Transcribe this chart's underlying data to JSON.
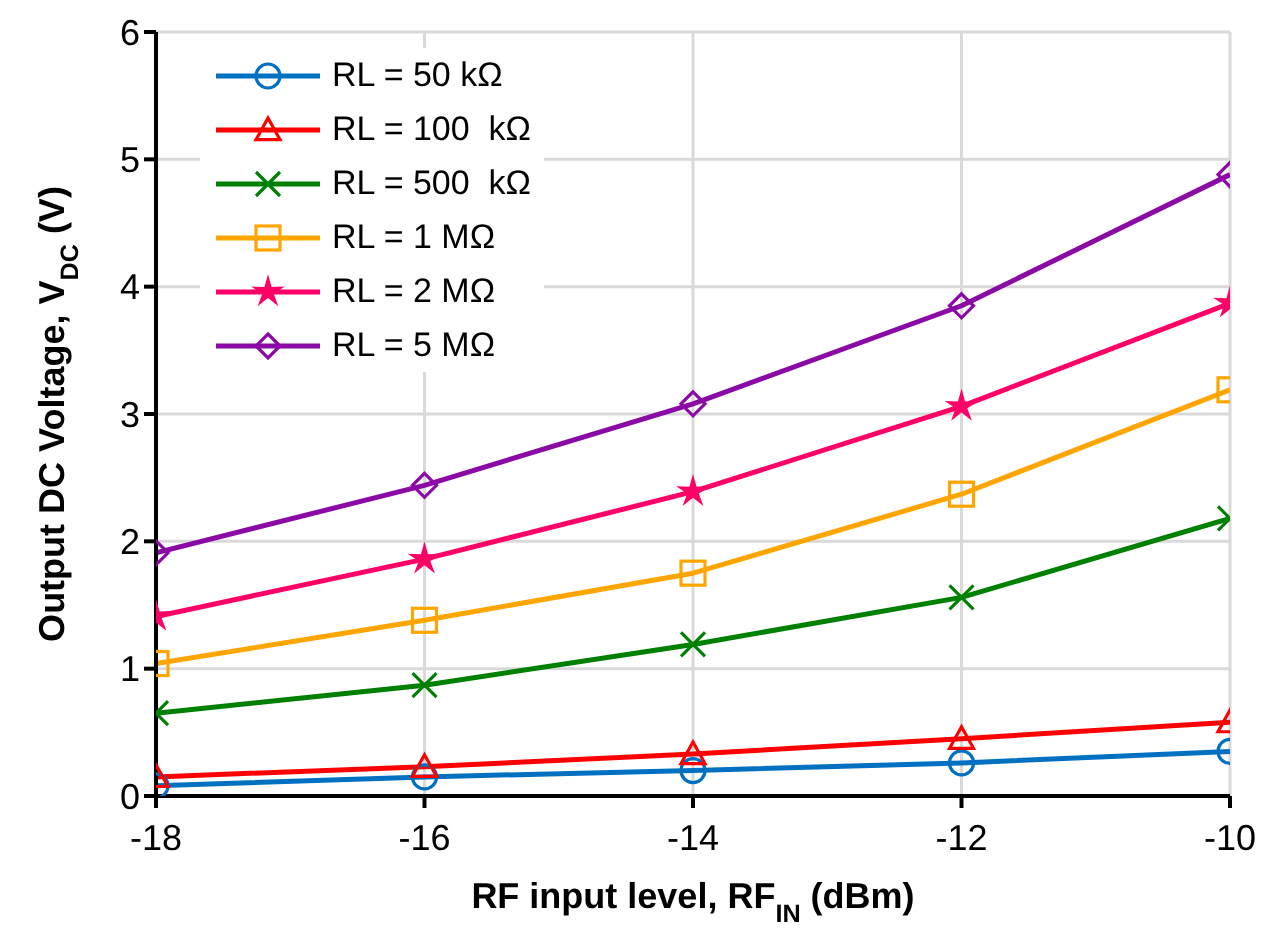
{
  "chart_data": {
    "type": "line",
    "xlabel": "RF input level, RF$_{IN}$ (dBm)",
    "ylabel": "Output DC Voltage, V$_{DC}$ (V)",
    "x": [
      -18,
      -16,
      -14,
      -12,
      -10
    ],
    "xlim": [
      -18,
      -10
    ],
    "xticks": [
      -18,
      -16,
      -14,
      -12,
      -10
    ],
    "ylim": [
      0,
      6
    ],
    "yticks": [
      0,
      1,
      2,
      3,
      4,
      5,
      6
    ],
    "grid": true,
    "legend": "top left",
    "series": [
      {
        "name": "RL = 50 kΩ",
        "color": "#0070c0",
        "marker": "circle",
        "values": [
          0.08,
          0.15,
          0.2,
          0.26,
          0.35
        ]
      },
      {
        "name": "RL = 100  kΩ",
        "color": "#ff0000",
        "marker": "triangle",
        "values": [
          0.15,
          0.23,
          0.33,
          0.45,
          0.58
        ]
      },
      {
        "name": "RL = 500  kΩ",
        "color": "#008000",
        "marker": "cross",
        "values": [
          0.65,
          0.87,
          1.19,
          1.56,
          2.18
        ]
      },
      {
        "name": "RL = 1 MΩ",
        "color": "#ffa500",
        "marker": "square",
        "values": [
          1.04,
          1.38,
          1.75,
          2.37,
          3.19
        ]
      },
      {
        "name": "RL = 2 MΩ",
        "color": "#ff0066",
        "marker": "star",
        "values": [
          1.41,
          1.86,
          2.39,
          3.06,
          3.87
        ]
      },
      {
        "name": "RL = 5 MΩ",
        "color": "#8b0aa5",
        "marker": "diamond",
        "values": [
          1.91,
          2.44,
          3.08,
          3.85,
          4.88
        ]
      }
    ]
  }
}
